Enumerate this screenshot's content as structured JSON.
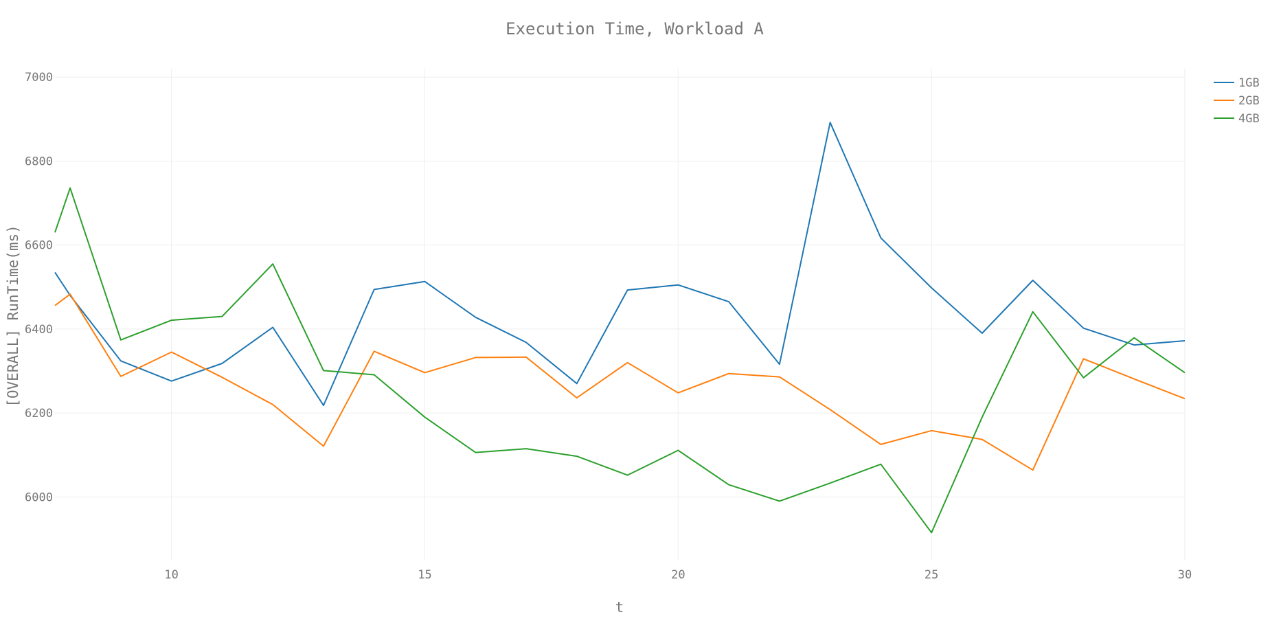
{
  "chart_data": {
    "type": "line",
    "title": "Execution Time, Workload A",
    "xlabel": "t",
    "ylabel": "[OVERALL] RunTime(ms)",
    "xlim": [
      7.7,
      30
    ],
    "ylim": [
      5850,
      7020
    ],
    "x_ticks": [
      "10",
      "15",
      "20",
      "25",
      "30"
    ],
    "y_ticks": [
      "6000",
      "6200",
      "6400",
      "6600",
      "6800",
      "7000"
    ],
    "grid": true,
    "legend_position": "top-right",
    "x": [
      7.7,
      8,
      9,
      10,
      11,
      12,
      13,
      14,
      15,
      16,
      17,
      18,
      19,
      20,
      21,
      22,
      23,
      24,
      25,
      26,
      27,
      28,
      29,
      30
    ],
    "series": [
      {
        "name": "1GB",
        "color": "#1f77b4",
        "values": [
          6535,
          6480,
          6324,
          6276,
          6318,
          6404,
          6218,
          6494,
          6513,
          6428,
          6368,
          6270,
          6493,
          6505,
          6465,
          6316,
          6892,
          6617,
          6498,
          6390,
          6516,
          6402,
          6362,
          6372
        ]
      },
      {
        "name": "2GB",
        "color": "#ff7f0e",
        "values": [
          6456,
          6483,
          6287,
          6345,
          6285,
          6220,
          6121,
          6347,
          6296,
          6332,
          6333,
          6236,
          6320,
          6248,
          6294,
          6286,
          6208,
          6125,
          6158,
          6137,
          6064,
          6329,
          6281,
          6234
        ]
      },
      {
        "name": "4GB",
        "color": "#2ca02c",
        "values": [
          6630,
          6736,
          6374,
          6421,
          6430,
          6555,
          6301,
          6291,
          6190,
          6106,
          6115,
          6097,
          6052,
          6111,
          6029,
          5990,
          6033,
          6078,
          5915,
          6190,
          6441,
          6284,
          6379,
          6296
        ]
      }
    ]
  }
}
